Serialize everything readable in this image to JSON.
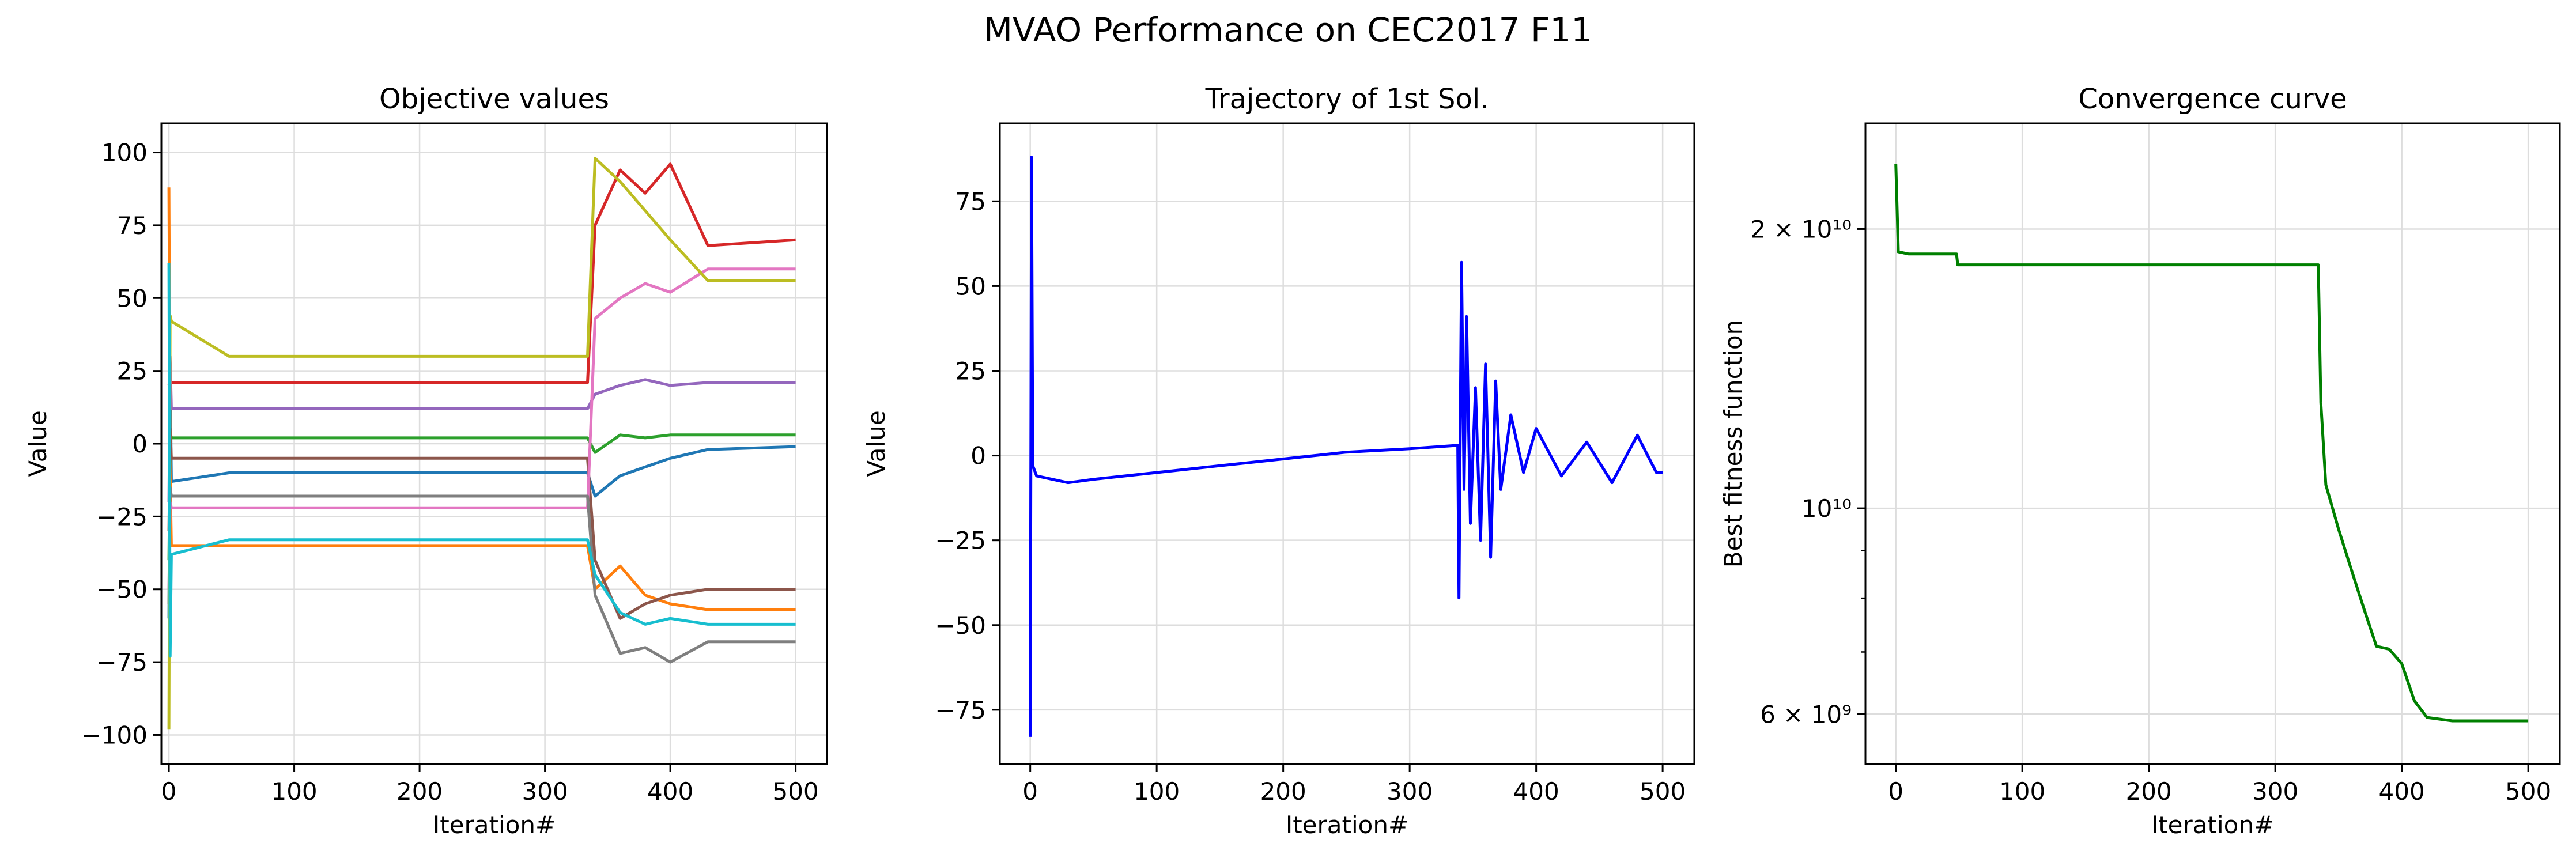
{
  "figure": {
    "suptitle": "MVAO Performance on CEC2017 F11"
  },
  "chart_data": [
    {
      "type": "line",
      "title": "Objective values",
      "xlabel": "Iteration#",
      "ylabel": "Value",
      "xlim": [
        -6,
        525
      ],
      "ylim": [
        -110,
        110
      ],
      "xticks": [
        0,
        100,
        200,
        300,
        400,
        500
      ],
      "yticks": [
        -100,
        -75,
        -50,
        -25,
        0,
        25,
        50,
        75,
        100
      ],
      "yscale": "linear",
      "grid": true,
      "colors": [
        "#1f77b4",
        "#ff7f0e",
        "#2ca02c",
        "#d62728",
        "#9467bd",
        "#8c564b",
        "#e377c2",
        "#7f7f7f",
        "#bcbd22",
        "#17becf"
      ],
      "series": [
        {
          "values": [
            [
              0,
              -60
            ],
            [
              1,
              27
            ],
            [
              2,
              -13
            ],
            [
              48,
              -10
            ],
            [
              49,
              -10
            ],
            [
              334,
              -10
            ],
            [
              340,
              -18
            ],
            [
              360,
              -11
            ],
            [
              380,
              -8
            ],
            [
              400,
              -5
            ],
            [
              430,
              -2
            ],
            [
              500,
              -1
            ]
          ]
        },
        {
          "values": [
            [
              0,
              88
            ],
            [
              1,
              -10
            ],
            [
              2,
              -35
            ],
            [
              48,
              -35
            ],
            [
              49,
              -35
            ],
            [
              334,
              -35
            ],
            [
              340,
              -50
            ],
            [
              360,
              -42
            ],
            [
              380,
              -52
            ],
            [
              400,
              -55
            ],
            [
              430,
              -57
            ],
            [
              500,
              -57
            ]
          ]
        },
        {
          "values": [
            [
              0,
              -40
            ],
            [
              1,
              4
            ],
            [
              2,
              2
            ],
            [
              48,
              2
            ],
            [
              49,
              2
            ],
            [
              334,
              2
            ],
            [
              340,
              -3
            ],
            [
              360,
              3
            ],
            [
              380,
              2
            ],
            [
              400,
              3
            ],
            [
              430,
              3
            ],
            [
              500,
              3
            ]
          ]
        },
        {
          "values": [
            [
              0,
              20
            ],
            [
              1,
              22
            ],
            [
              2,
              21
            ],
            [
              48,
              21
            ],
            [
              49,
              21
            ],
            [
              334,
              21
            ],
            [
              340,
              75
            ],
            [
              360,
              94
            ],
            [
              380,
              86
            ],
            [
              400,
              96
            ],
            [
              430,
              68
            ],
            [
              500,
              70
            ]
          ]
        },
        {
          "values": [
            [
              0,
              -20
            ],
            [
              1,
              30
            ],
            [
              2,
              12
            ],
            [
              48,
              12
            ],
            [
              49,
              12
            ],
            [
              334,
              12
            ],
            [
              340,
              17
            ],
            [
              360,
              20
            ],
            [
              380,
              22
            ],
            [
              400,
              20
            ],
            [
              430,
              21
            ],
            [
              500,
              21
            ]
          ]
        },
        {
          "values": [
            [
              0,
              -30
            ],
            [
              1,
              5
            ],
            [
              2,
              -5
            ],
            [
              48,
              -5
            ],
            [
              49,
              -5
            ],
            [
              334,
              -5
            ],
            [
              340,
              -40
            ],
            [
              360,
              -60
            ],
            [
              380,
              -55
            ],
            [
              400,
              -52
            ],
            [
              430,
              -50
            ],
            [
              500,
              -50
            ]
          ]
        },
        {
          "values": [
            [
              0,
              -50
            ],
            [
              1,
              -20
            ],
            [
              2,
              -22
            ],
            [
              48,
              -22
            ],
            [
              49,
              -22
            ],
            [
              334,
              -22
            ],
            [
              340,
              43
            ],
            [
              360,
              50
            ],
            [
              380,
              55
            ],
            [
              400,
              52
            ],
            [
              430,
              60
            ],
            [
              500,
              60
            ]
          ]
        },
        {
          "values": [
            [
              0,
              -55
            ],
            [
              1,
              -15
            ],
            [
              2,
              -18
            ],
            [
              48,
              -18
            ],
            [
              49,
              -18
            ],
            [
              334,
              -18
            ],
            [
              340,
              -52
            ],
            [
              360,
              -72
            ],
            [
              380,
              -70
            ],
            [
              400,
              -75
            ],
            [
              430,
              -68
            ],
            [
              500,
              -68
            ]
          ]
        },
        {
          "values": [
            [
              0,
              -98
            ],
            [
              1,
              44
            ],
            [
              2,
              42
            ],
            [
              48,
              30
            ],
            [
              49,
              30
            ],
            [
              334,
              30
            ],
            [
              340,
              98
            ],
            [
              360,
              90
            ],
            [
              380,
              80
            ],
            [
              400,
              70
            ],
            [
              430,
              56
            ],
            [
              500,
              56
            ]
          ]
        },
        {
          "values": [
            [
              0,
              62
            ],
            [
              1,
              -73
            ],
            [
              2,
              -38
            ],
            [
              48,
              -33
            ],
            [
              49,
              -33
            ],
            [
              334,
              -33
            ],
            [
              340,
              -45
            ],
            [
              360,
              -58
            ],
            [
              380,
              -62
            ],
            [
              400,
              -60
            ],
            [
              430,
              -62
            ],
            [
              500,
              -62
            ]
          ]
        }
      ]
    },
    {
      "type": "line",
      "title": "Trajectory of 1st Sol.",
      "xlabel": "Iteration#",
      "ylabel": "Value",
      "xlim": [
        -24,
        525
      ],
      "ylim": [
        -91,
        98
      ],
      "xticks": [
        0,
        100,
        200,
        300,
        400,
        500
      ],
      "yticks": [
        -75,
        -50,
        -25,
        0,
        25,
        50,
        75
      ],
      "yscale": "linear",
      "grid": true,
      "series": [
        {
          "color": "#0000ff",
          "values": [
            [
              0,
              -83
            ],
            [
              1,
              88
            ],
            [
              2,
              -3
            ],
            [
              5,
              -6
            ],
            [
              30,
              -8
            ],
            [
              50,
              -7
            ],
            [
              100,
              -5
            ],
            [
              150,
              -3
            ],
            [
              200,
              -1
            ],
            [
              250,
              1
            ],
            [
              300,
              2
            ],
            [
              338,
              3
            ],
            [
              339,
              -42
            ],
            [
              341,
              57
            ],
            [
              343,
              -10
            ],
            [
              345,
              41
            ],
            [
              348,
              -20
            ],
            [
              352,
              20
            ],
            [
              356,
              -25
            ],
            [
              360,
              27
            ],
            [
              364,
              -30
            ],
            [
              368,
              22
            ],
            [
              372,
              -10
            ],
            [
              380,
              12
            ],
            [
              390,
              -5
            ],
            [
              400,
              8
            ],
            [
              420,
              -6
            ],
            [
              440,
              4
            ],
            [
              460,
              -8
            ],
            [
              480,
              6
            ],
            [
              495,
              -5
            ],
            [
              500,
              -5
            ]
          ]
        }
      ]
    },
    {
      "type": "line",
      "title": "Convergence curve",
      "xlabel": "Iteration#",
      "ylabel": "Best fitness function",
      "xlim": [
        -24,
        525
      ],
      "ylim": [
        5300000000.0,
        26000000000.0
      ],
      "xticks": [
        0,
        100,
        200,
        300,
        400,
        500
      ],
      "yticks": [
        6000000000.0,
        10000000000.0,
        20000000000.0
      ],
      "ytick_labels": [
        "6 × 10⁹",
        "10¹⁰",
        "2 × 10¹⁰"
      ],
      "yscale": "log",
      "grid": true,
      "series": [
        {
          "color": "#008000",
          "values": [
            [
              0,
              23500000000.0
            ],
            [
              2,
              18900000000.0
            ],
            [
              10,
              18800000000.0
            ],
            [
              48,
              18800000000.0
            ],
            [
              49,
              18300000000.0
            ],
            [
              334,
              18300000000.0
            ],
            [
              336,
              13000000000.0
            ],
            [
              340,
              10600000000.0
            ],
            [
              350,
              9500000000.0
            ],
            [
              360,
              8600000000.0
            ],
            [
              370,
              7800000000.0
            ],
            [
              380,
              7100000000.0
            ],
            [
              390,
              7050000000.0
            ],
            [
              400,
              6800000000.0
            ],
            [
              410,
              6200000000.0
            ],
            [
              420,
              5950000000.0
            ],
            [
              440,
              5900000000.0
            ],
            [
              500,
              5900000000.0
            ]
          ]
        }
      ]
    }
  ]
}
